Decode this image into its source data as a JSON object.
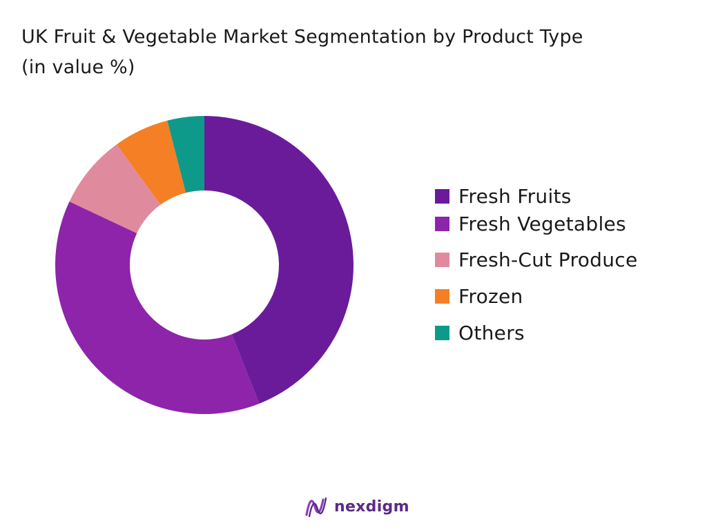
{
  "chart_data": {
    "type": "pie",
    "title": "UK Fruit & Vegetable Market Segmentation by Product Type",
    "subtitle": "(in value %)",
    "donut": true,
    "categories": [
      "Fresh Fruits",
      "Fresh Vegetables",
      "Fresh-Cut Produce",
      "Frozen",
      "Others"
    ],
    "values": [
      44,
      38,
      8,
      6,
      4
    ],
    "colors": [
      "#6a1b9a",
      "#8e24aa",
      "#e08a9e",
      "#f47f24",
      "#0e9a8a"
    ],
    "legend_position": "right"
  },
  "branding": {
    "logo_text": "nexdigm",
    "logo_icon": "nexdigm-wave-icon"
  }
}
